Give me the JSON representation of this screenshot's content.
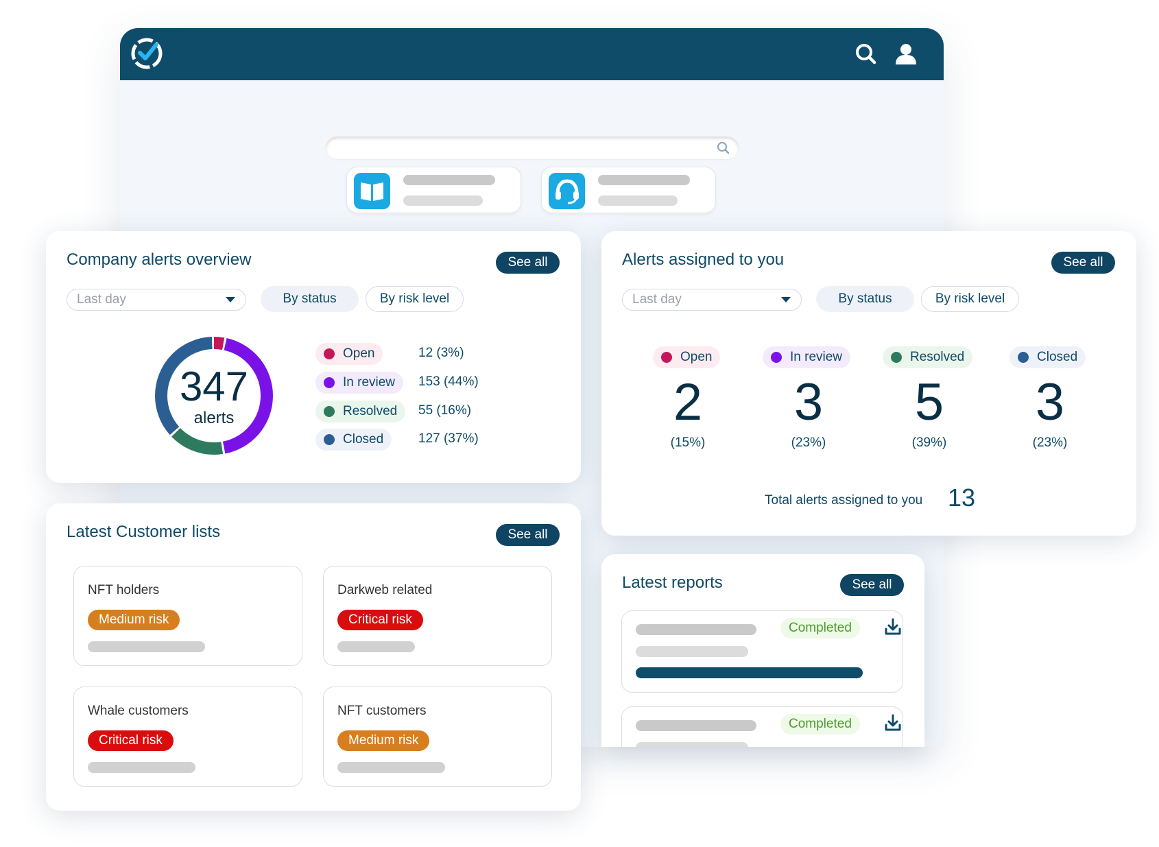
{
  "colors": {
    "header": "#0f4c69",
    "accent_dark": "#0f4463",
    "status_open": "#c2185b",
    "status_in_review": "#7a12e8",
    "status_resolved": "#2e7a5e",
    "status_closed": "#2b5f94",
    "risk_medium": "#d77e1f",
    "risk_critical": "#d90d0d",
    "completed": "#4c9a2a"
  },
  "header": {
    "logo_icon": "checkmark-logo-icon",
    "search_icon": "search-icon",
    "user_icon": "user-icon"
  },
  "quick_links": [
    {
      "icon": "book-icon"
    },
    {
      "icon": "support-headset-icon"
    }
  ],
  "company_alerts": {
    "title": "Company alerts overview",
    "see_all": "See all",
    "period": "Last day",
    "tab_status": "By status",
    "tab_risk": "By risk level",
    "total": "347",
    "total_label": "alerts",
    "statuses": [
      {
        "label": "Open",
        "value": "12 (3%)",
        "count": 12,
        "color": "#c2185b",
        "bg": "#fcecf0"
      },
      {
        "label": "In review",
        "value": "153 (44%)",
        "count": 153,
        "color": "#7a12e8",
        "bg": "#f3ebfc"
      },
      {
        "label": "Resolved",
        "value": "55 (16%)",
        "count": 55,
        "color": "#2e7a5e",
        "bg": "#eaf6ec"
      },
      {
        "label": "Closed",
        "value": "127 (37%)",
        "count": 127,
        "color": "#2b5f94",
        "bg": "#eef2f8"
      }
    ]
  },
  "assigned_alerts": {
    "title": "Alerts assigned to you",
    "see_all": "See all",
    "period": "Last day",
    "tab_status": "By status",
    "tab_risk": "By risk level",
    "statuses": [
      {
        "label": "Open",
        "count": "2",
        "pct": "(15%)",
        "color": "#c2185b",
        "bg": "#fcecf0"
      },
      {
        "label": "In review",
        "count": "3",
        "pct": "(23%)",
        "color": "#7a12e8",
        "bg": "#f3ebfc"
      },
      {
        "label": "Resolved",
        "count": "5",
        "pct": "(39%)",
        "color": "#2e7a5e",
        "bg": "#eaf6ec"
      },
      {
        "label": "Closed",
        "count": "3",
        "pct": "(23%)",
        "color": "#2b5f94",
        "bg": "#eef2f8"
      }
    ],
    "total_label": "Total alerts assigned to you",
    "total": "13"
  },
  "customer_lists": {
    "title": "Latest Customer lists",
    "see_all": "See all",
    "items": [
      {
        "name": "NFT holders",
        "risk": "Medium risk",
        "level": "medium"
      },
      {
        "name": "Darkweb related",
        "risk": "Critical risk",
        "level": "critical"
      },
      {
        "name": "Whale customers",
        "risk": "Critical risk",
        "level": "critical"
      },
      {
        "name": "NFT customers",
        "risk": "Medium risk",
        "level": "medium"
      }
    ]
  },
  "reports": {
    "title": "Latest reports",
    "see_all": "See all",
    "items": [
      {
        "status": "Completed",
        "icon": "download-icon"
      },
      {
        "status": "Completed",
        "icon": "download-icon"
      }
    ]
  }
}
